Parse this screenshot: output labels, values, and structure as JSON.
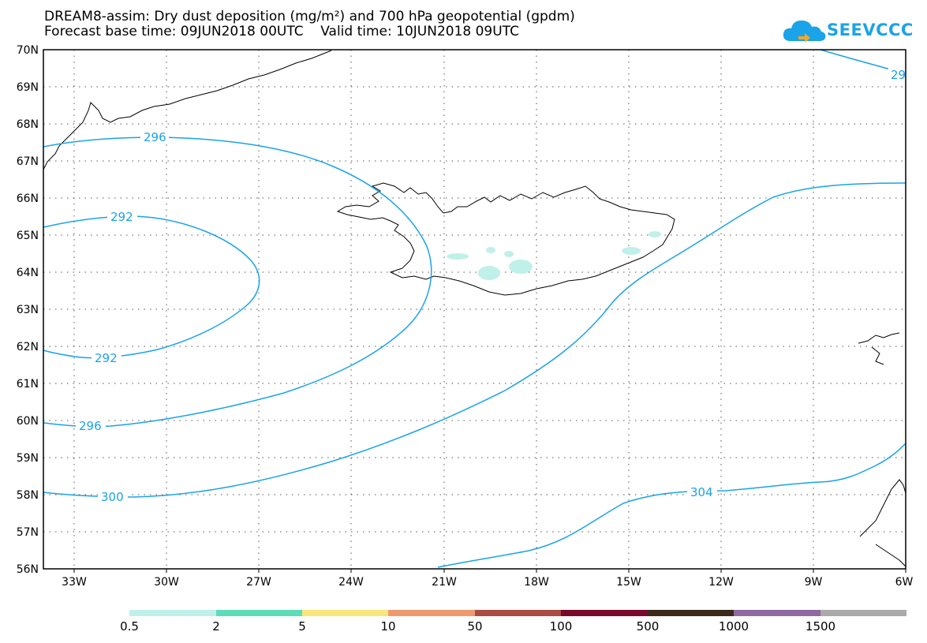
{
  "header": {
    "title_line1": "DREAM8-assim: Dry dust deposition (mg/m²) and 700 hPa geopotential (gpdm)",
    "title_line2": "Forecast base time: 09JUN2018 00UTC    Valid time: 10JUN2018 09UTC"
  },
  "logo": {
    "text": "SEEVCCC",
    "icon": "cloud-icon"
  },
  "map": {
    "lon_labels": [
      "33W",
      "30W",
      "27W",
      "24W",
      "21W",
      "18W",
      "15W",
      "12W",
      "9W",
      "6W"
    ],
    "lat_labels": [
      "70N",
      "69N",
      "68N",
      "67N",
      "66N",
      "65N",
      "64N",
      "63N",
      "62N",
      "61N",
      "60N",
      "59N",
      "58N",
      "57N",
      "56N"
    ],
    "contour_labels": [
      "296",
      "292",
      "292",
      "296",
      "300",
      "304",
      "29"
    ],
    "contour_color": "#1aa3e8",
    "coast_color": "#000000"
  },
  "legend": {
    "labels": [
      "0.5",
      "2",
      "5",
      "10",
      "50",
      "100",
      "500",
      "1000",
      "1500"
    ],
    "colors": [
      "#c0f0ea",
      "#5fdcb8",
      "#f7e67c",
      "#ef9a6e",
      "#a84c44",
      "#7a0a2c",
      "#3a2a1a",
      "#8e6aa0",
      "#aaaaaa"
    ]
  }
}
